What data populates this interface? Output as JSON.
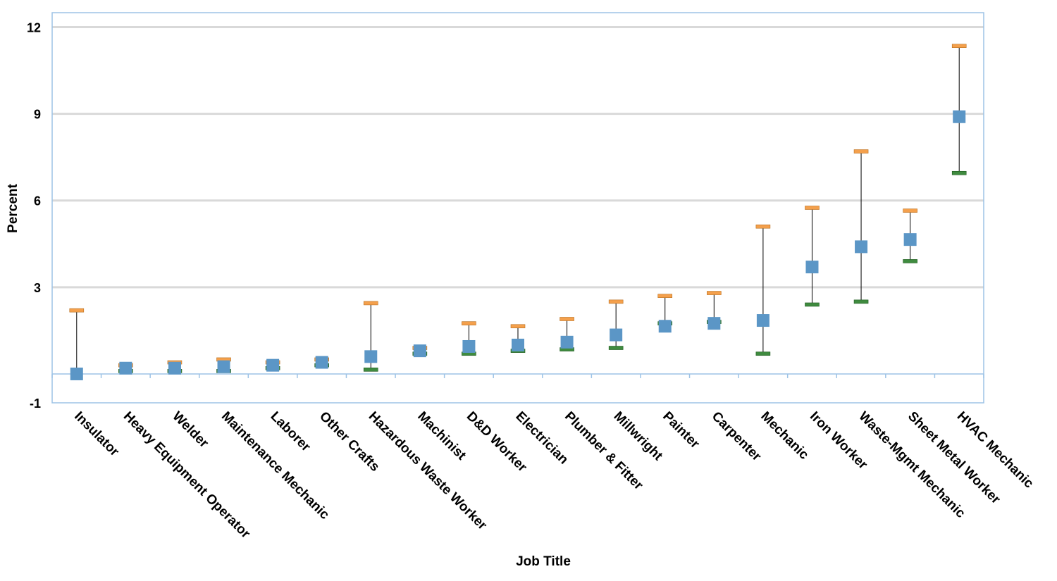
{
  "chart_data": {
    "type": "scatter",
    "xlabel": "Job Title",
    "ylabel": "Percent",
    "ylim": [
      -1,
      12.5
    ],
    "yticks": [
      -1,
      3,
      6,
      9,
      12
    ],
    "baseline": 0,
    "grid": true,
    "categories": [
      "Insulator",
      "Heavy Equipment Operator",
      "Welder",
      "Maintenance Mechanic",
      "Laborer",
      "Other Crafts",
      "Hazardous Waste Worker",
      "Machinist",
      "D&D Worker",
      "Electrician",
      "Plumber & Fitter",
      "Millwright",
      "Painter",
      "Carpenter",
      "Mechanic",
      "Iron Worker",
      "Waste-Mgmt Mechanic",
      "Sheet Metal Worker",
      "HVAC Mechanic"
    ],
    "series": [
      {
        "values": [
          0.0,
          0.2,
          0.2,
          0.25,
          0.3,
          0.4,
          0.6,
          0.8,
          0.95,
          1.0,
          1.1,
          1.35,
          1.65,
          1.75,
          1.85,
          3.7,
          4.4,
          4.65,
          8.9
        ]
      },
      {
        "values": [
          2.2,
          0.3,
          0.4,
          0.5,
          0.4,
          0.5,
          2.45,
          0.9,
          1.75,
          1.65,
          1.9,
          2.5,
          2.7,
          2.8,
          5.1,
          5.75,
          7.7,
          5.65,
          11.35
        ]
      },
      {
        "values": [
          0.0,
          0.1,
          0.1,
          0.1,
          0.2,
          0.3,
          0.15,
          0.7,
          0.7,
          0.8,
          0.85,
          0.9,
          1.75,
          1.8,
          0.7,
          2.4,
          2.5,
          3.9,
          6.95
        ]
      }
    ],
    "colors": {
      "point": "#5b96c6",
      "upper": "#f4a04c",
      "lower": "#3f8b3f",
      "whisker": "#000000",
      "grid": "#d9d9d9",
      "frame": "#9dc3e6"
    }
  }
}
